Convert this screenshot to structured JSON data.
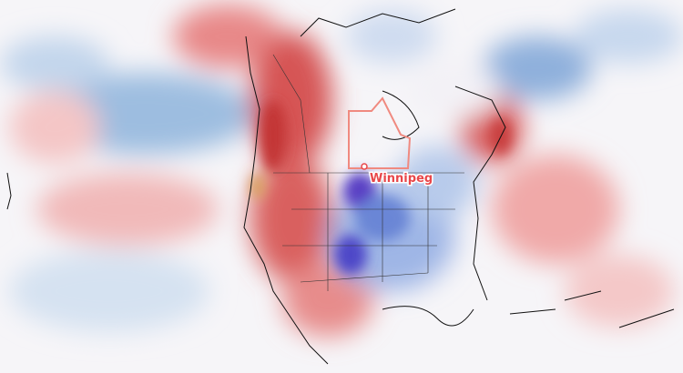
{
  "map": {
    "city_label": "Winnipeg"
  }
}
